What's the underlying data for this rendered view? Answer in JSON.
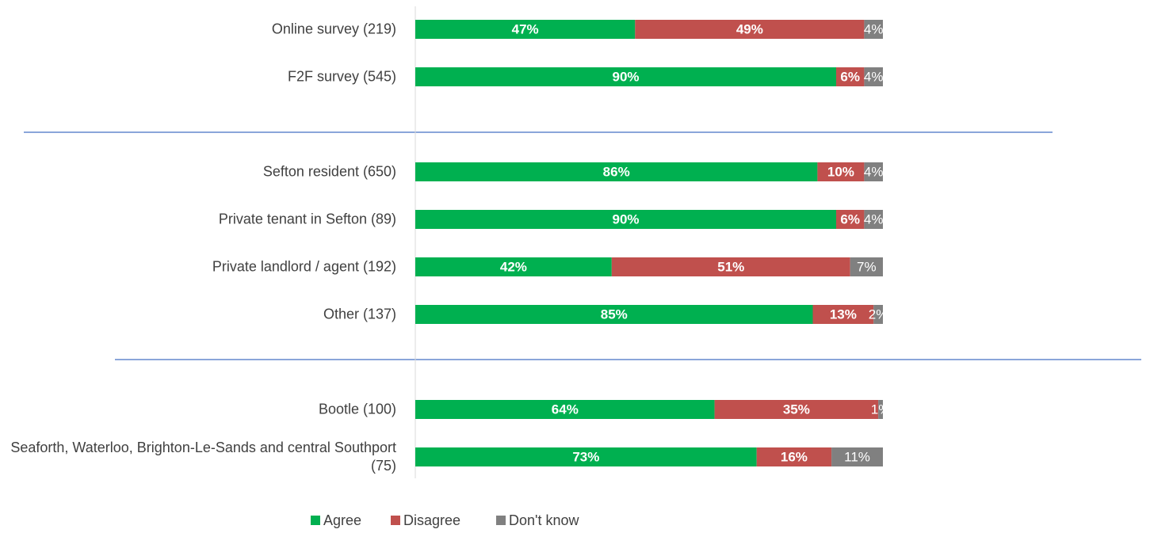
{
  "chart_data": {
    "type": "stacked-bar-horizontal",
    "categories": [
      "Online survey (219)",
      "F2F survey (545)",
      null,
      "Sefton resident (650)",
      "Private tenant in Sefton (89)",
      "Private landlord / agent (192)",
      "Other (137)",
      null,
      "Bootle (100)",
      "Seaforth, Waterloo, Brighton-Le-Sands and central Southport (75)"
    ],
    "series": [
      {
        "name": "Agree",
        "color": "#00b050",
        "values": [
          47,
          90,
          null,
          86,
          90,
          42,
          85,
          null,
          64,
          73
        ],
        "value_labels": [
          "47%",
          "90%",
          null,
          "86%",
          "90%",
          "42%",
          "85%",
          null,
          "64%",
          "73%"
        ]
      },
      {
        "name": "Disagree",
        "color": "#c0504d",
        "values": [
          49,
          6,
          null,
          10,
          6,
          51,
          13,
          null,
          35,
          16
        ],
        "value_labels": [
          "49%",
          "6%",
          null,
          "10%",
          "6%",
          "51%",
          "13%",
          null,
          "35%",
          "16%"
        ]
      },
      {
        "name": "Don't know",
        "color": "#808080",
        "values": [
          4,
          4,
          null,
          4,
          4,
          7,
          2,
          null,
          1,
          11
        ],
        "value_labels": [
          "4%",
          "4%",
          null,
          "4%",
          "4%",
          "7%",
          "2%",
          null,
          "1%",
          "11%"
        ]
      }
    ],
    "xlim": [
      0,
      100
    ]
  }
}
